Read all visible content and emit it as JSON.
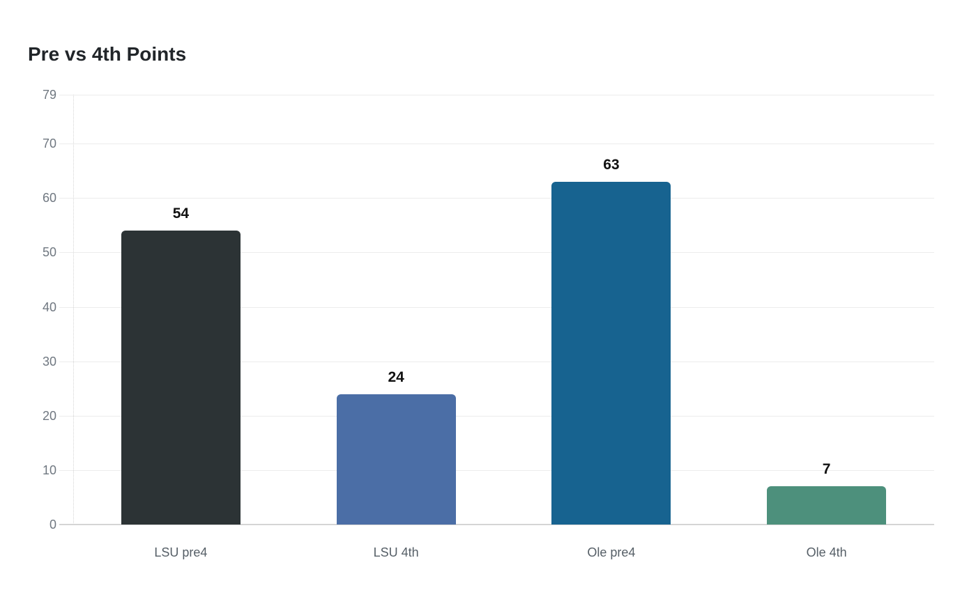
{
  "chart": {
    "title": "Pre vs 4th Points"
  },
  "chart_data": {
    "type": "bar",
    "title": "Pre vs 4th Points",
    "categories": [
      "LSU pre4",
      "LSU 4th",
      "Ole pre4",
      "Ole 4th"
    ],
    "values": [
      54,
      24,
      63,
      7
    ],
    "value_labels": [
      "54",
      "24",
      "63",
      "7"
    ],
    "bar_colors": [
      "#2c3335",
      "#4b6ea6",
      "#176390",
      "#4d907c"
    ],
    "yticks": [
      0,
      10,
      20,
      30,
      40,
      50,
      60,
      70,
      79
    ],
    "ylim": [
      0,
      79
    ],
    "xlabel": "",
    "ylabel": "",
    "grid": "horizontal-only",
    "legend": "none",
    "colors": {
      "background": "#ffffff",
      "title": "#212529",
      "tick_label": "#6f7780",
      "category_label": "#555e66",
      "value_label": "#111111",
      "gridline": "#ececec",
      "baseline": "#d5d5d5",
      "axis_dotted": "#d4d4d4"
    }
  }
}
